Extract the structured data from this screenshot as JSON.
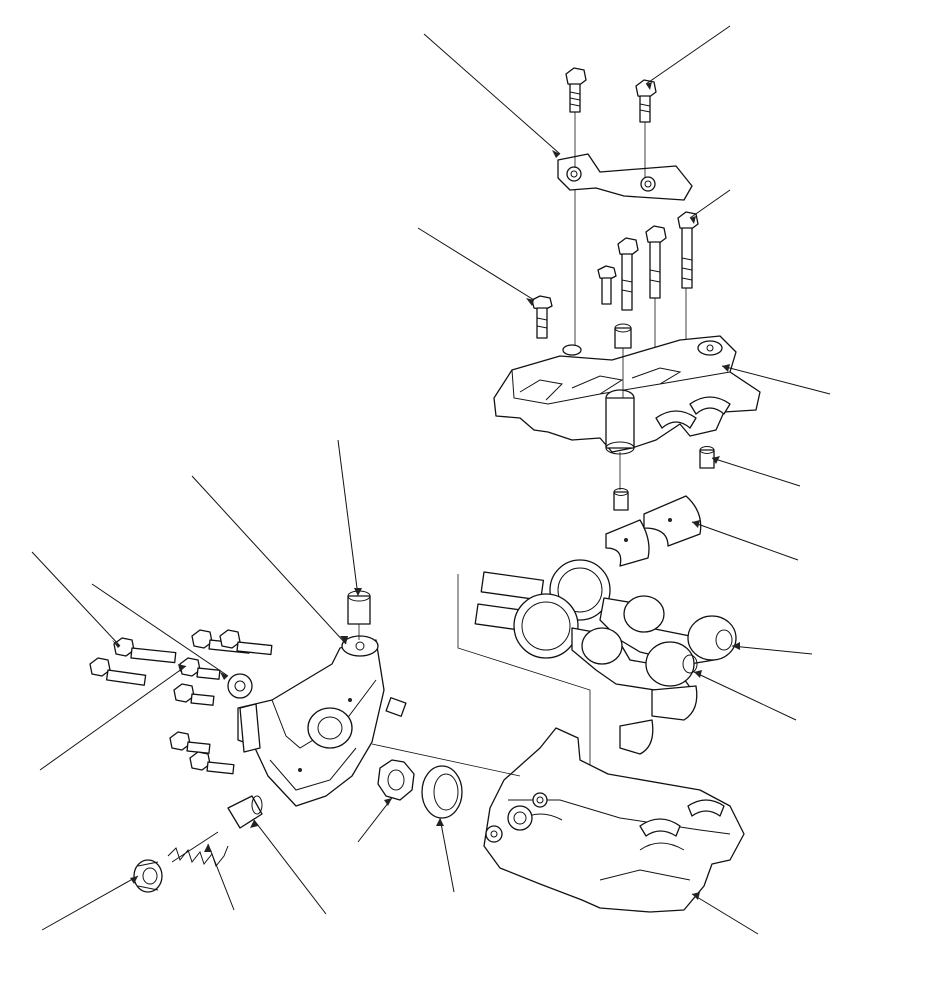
{
  "diagram": {
    "kind": "exploded-parts-view",
    "callouts_labeled": false,
    "colors": {
      "line": "#111111",
      "background": "#ffffff",
      "shade": "#e6e6e6"
    }
  }
}
